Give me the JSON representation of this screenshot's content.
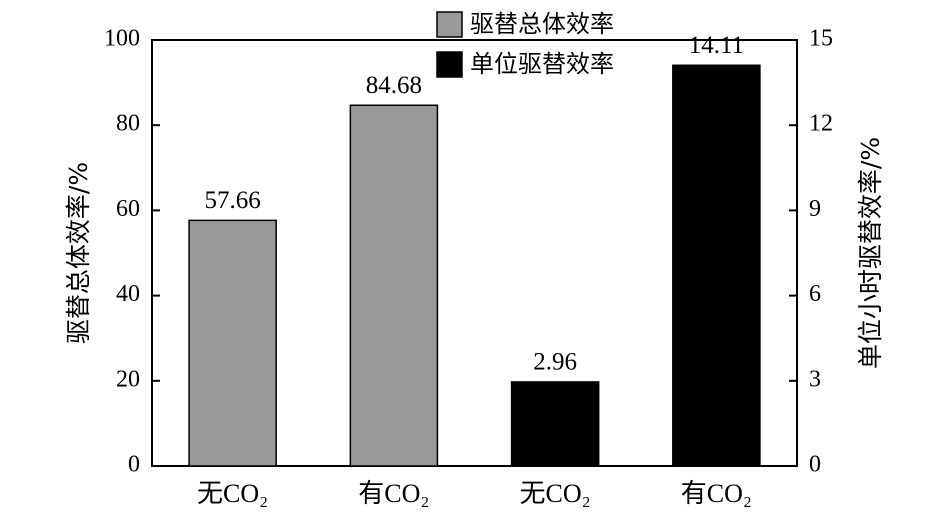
{
  "chart_data": {
    "type": "bar",
    "categories": [
      "无CO₂",
      "有CO₂",
      "无CO₂",
      "有CO₂"
    ],
    "series": [
      {
        "name": "驱替总体效率",
        "color": "#999999",
        "values": [
          57.66,
          84.68,
          null,
          null
        ]
      },
      {
        "name": "单位驱替效率",
        "color": "#000000",
        "axis": "y2",
        "values": [
          null,
          null,
          2.96,
          14.11
        ]
      }
    ],
    "ylabel": "驱替总体效率/%",
    "y2label": "单位小时驱替效率/%",
    "ylim": [
      0,
      100
    ],
    "yticks": [
      0,
      20,
      40,
      60,
      80,
      100
    ],
    "y2lim": [
      0,
      15
    ],
    "y2ticks": [
      0,
      3,
      6,
      9,
      12,
      15
    ]
  }
}
